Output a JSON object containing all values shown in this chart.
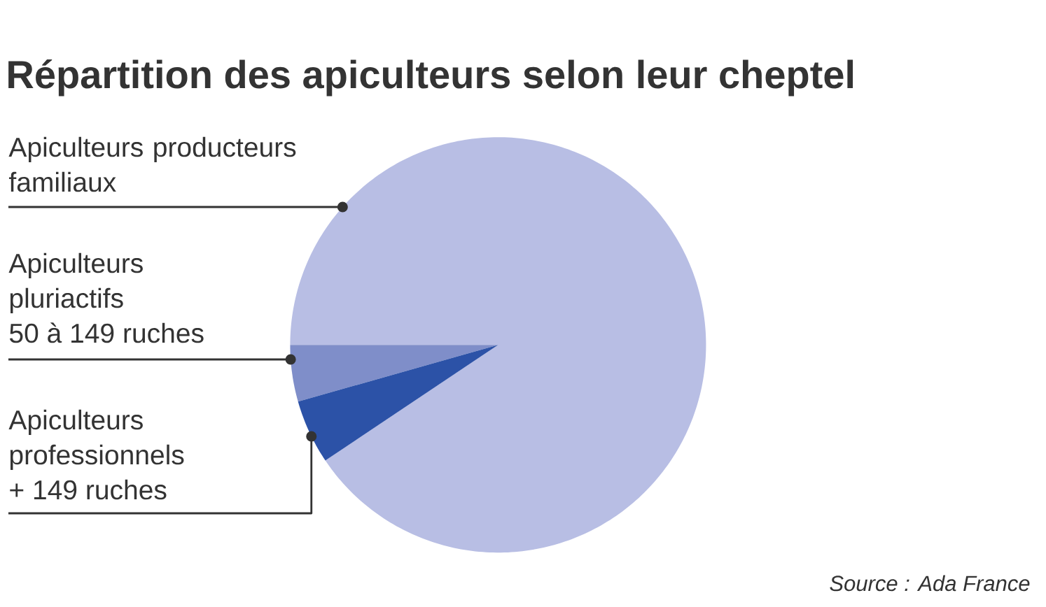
{
  "chart_data": {
    "type": "pie",
    "title": "Répartition des apiculteurs selon leur cheptel",
    "categories": [
      "Apiculteurs producteurs familiaux",
      "Apiculteurs pluriactifs 50 à 149 ruches",
      "Apiculteurs professionnels + 149 ruches"
    ],
    "values": [
      90.6,
      4.4,
      5.0
    ],
    "colors": [
      "#b8bee4",
      "#7f8ec9",
      "#2c52a7"
    ],
    "annotations": [
      "Source : Ada France"
    ]
  }
}
